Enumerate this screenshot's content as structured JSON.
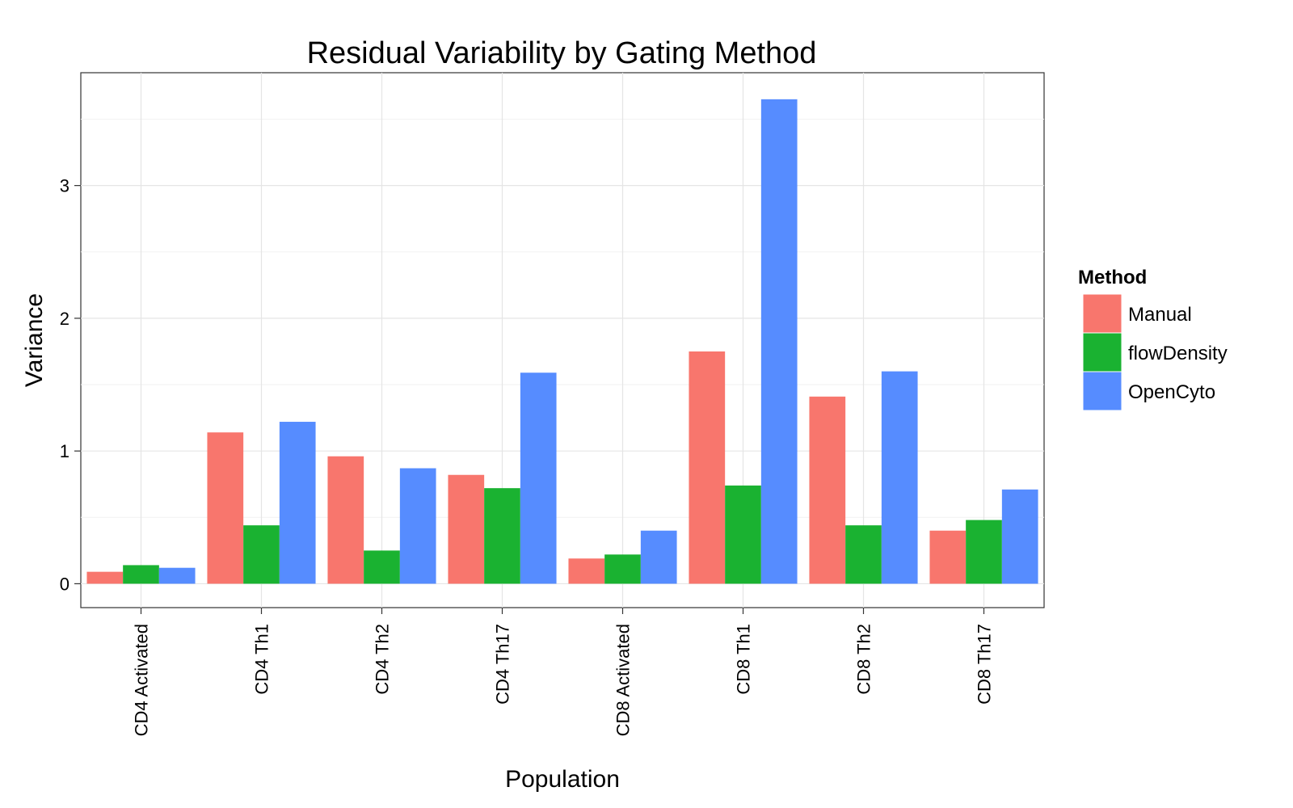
{
  "chart_data": {
    "type": "bar",
    "title": "Residual Variability by Gating Method",
    "xlabel": "Population",
    "ylabel": "Variance",
    "ylim": [
      -0.18,
      3.85
    ],
    "yticks": [
      "0",
      "1",
      "2",
      "3"
    ],
    "grid": true,
    "legend_title": "Method",
    "legend_position": "right",
    "categories": [
      "CD4 Activated",
      "CD4 Th1",
      "CD4 Th2",
      "CD4 Th17",
      "CD8 Activated",
      "CD8 Th1",
      "CD8 Th2",
      "CD8 Th17"
    ],
    "series": [
      {
        "name": "Manual",
        "color": "#F8766D",
        "values": [
          0.09,
          1.14,
          0.96,
          0.82,
          0.19,
          1.75,
          1.41,
          0.4
        ]
      },
      {
        "name": "flowDensity",
        "color": "#1AB231",
        "values": [
          0.14,
          0.44,
          0.25,
          0.72,
          0.22,
          0.74,
          0.44,
          0.48
        ]
      },
      {
        "name": "OpenCyto",
        "color": "#568CFF",
        "values": [
          0.12,
          1.22,
          0.87,
          1.59,
          0.4,
          3.65,
          1.6,
          0.71
        ]
      }
    ]
  }
}
